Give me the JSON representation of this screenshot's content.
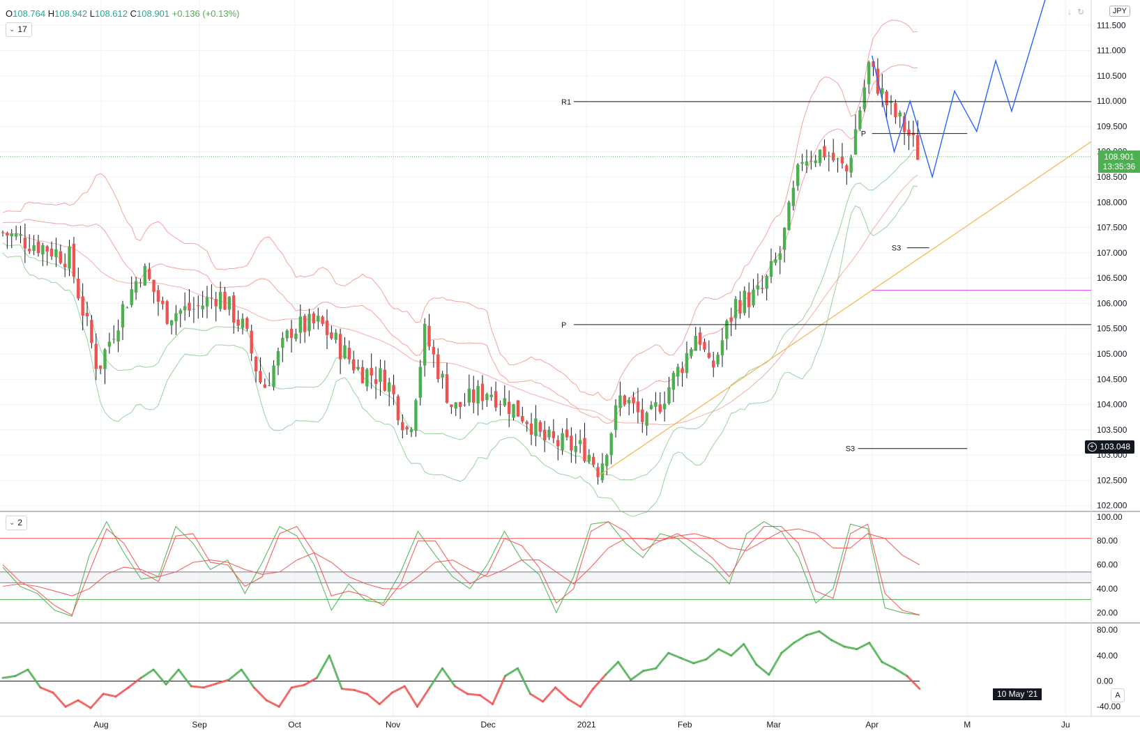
{
  "header": {
    "ohlc": {
      "o_label": "O",
      "o": "108.764",
      "h_label": "H",
      "h": "108.942",
      "l_label": "L",
      "l": "108.612",
      "c_label": "C",
      "c": "108.901",
      "change": "+0.136 (+0.13%)"
    },
    "main_pane_indicator_count": "17",
    "stoch_pane_indicator_count": "2",
    "currency": "JPY"
  },
  "last_price": {
    "value": "108.901",
    "countdown": "13:35:36"
  },
  "crosshair_price": "103.048",
  "crosshair_date": "10 May '21",
  "auto_label": "A",
  "colors": {
    "up": "#4caf50",
    "down": "#ef5350",
    "bb_red": "#f28b82",
    "bb_green": "#81c784",
    "trendline": "#f7b24e",
    "pattern": "#2962ff",
    "pivot": "#131722",
    "magenta": "#e040fb"
  },
  "chart_data": [
    {
      "type": "candlestick",
      "title": "",
      "ylim": [
        101.9,
        112.0
      ],
      "y_ticks": [
        "111.500",
        "111.000",
        "110.500",
        "110.000",
        "109.500",
        "109.000",
        "108.500",
        "108.000",
        "107.500",
        "107.000",
        "106.500",
        "106.000",
        "105.500",
        "105.000",
        "104.500",
        "104.000",
        "103.500",
        "103.000",
        "102.500",
        "102.000"
      ],
      "x_ticks": [
        "Aug",
        "Sep",
        "Oct",
        "Nov",
        "Dec",
        "2021",
        "Feb",
        "Mar",
        "Apr",
        "M",
        "Ju"
      ],
      "approx_close_path": [
        {
          "date": "Jul 1",
          "close": 107.4
        },
        {
          "date": "Jul 15",
          "close": 107.1
        },
        {
          "date": "Jul 22",
          "close": 106.9
        },
        {
          "date": "Jul 31",
          "close": 104.7
        },
        {
          "date": "Aug 7",
          "close": 105.8
        },
        {
          "date": "Aug 14",
          "close": 106.7
        },
        {
          "date": "Aug 21",
          "close": 105.8
        },
        {
          "date": "Aug 31",
          "close": 105.9
        },
        {
          "date": "Sep 7",
          "close": 106.2
        },
        {
          "date": "Sep 15",
          "close": 105.5
        },
        {
          "date": "Sep 21",
          "close": 104.3
        },
        {
          "date": "Sep 30",
          "close": 105.5
        },
        {
          "date": "Oct 9",
          "close": 105.6
        },
        {
          "date": "Oct 21",
          "close": 104.7
        },
        {
          "date": "Oct 30",
          "close": 104.5
        },
        {
          "date": "Nov 6",
          "close": 103.4
        },
        {
          "date": "Nov 11",
          "close": 105.4
        },
        {
          "date": "Nov 20",
          "close": 103.9
        },
        {
          "date": "Dec 1",
          "close": 104.3
        },
        {
          "date": "Dec 14",
          "close": 103.7
        },
        {
          "date": "Dec 18",
          "close": 103.3
        },
        {
          "date": "Jan 1",
          "close": 103.1
        },
        {
          "date": "Jan 5",
          "close": 102.7
        },
        {
          "date": "Jan 12",
          "close": 104.2
        },
        {
          "date": "Jan 20",
          "close": 103.6
        },
        {
          "date": "Feb 1",
          "close": 104.9
        },
        {
          "date": "Feb 5",
          "close": 105.5
        },
        {
          "date": "Feb 9",
          "close": 104.6
        },
        {
          "date": "Feb 17",
          "close": 106.0
        },
        {
          "date": "Feb 25",
          "close": 106.2
        },
        {
          "date": "Mar 3",
          "close": 107.0
        },
        {
          "date": "Mar 10",
          "close": 108.9
        },
        {
          "date": "Mar 17",
          "close": 109.0
        },
        {
          "date": "Mar 24",
          "close": 108.6
        },
        {
          "date": "Mar 31",
          "close": 110.7
        },
        {
          "date": "Apr 6",
          "close": 109.9
        },
        {
          "date": "Apr 12",
          "close": 109.4
        },
        {
          "date": "Apr 16",
          "close": 108.9
        }
      ],
      "levels": [
        {
          "label": "R1",
          "value": 109.99
        },
        {
          "label": "P",
          "value": 105.58
        },
        {
          "label": "P",
          "value": 109.36
        },
        {
          "label": "S3",
          "value": 107.1
        },
        {
          "label": "S3",
          "value": 103.13
        }
      ],
      "horizontal_line_magenta": 106.26
    },
    {
      "type": "line",
      "title": "",
      "ylim": [
        12,
        104
      ],
      "y_ticks": [
        "100.00",
        "80.00",
        "60.00",
        "40.00",
        "20.00"
      ],
      "hlines": [
        82,
        54,
        45,
        31
      ],
      "series": [
        {
          "values": [
            58,
            42,
            36,
            22,
            17,
            68,
            96,
            70,
            48,
            50,
            92,
            78,
            56,
            64,
            36,
            62,
            92,
            84,
            60,
            22,
            44,
            30,
            28,
            54,
            88,
            68,
            50,
            40,
            60,
            88,
            64,
            52,
            20,
            50,
            94,
            96,
            78,
            66,
            86,
            82,
            70,
            60,
            44,
            86,
            96,
            88,
            66,
            28,
            40,
            94,
            90,
            24,
            20,
            18
          ]
        },
        {
          "values": [
            60,
            46,
            38,
            26,
            18,
            54,
            90,
            78,
            54,
            46,
            84,
            86,
            62,
            60,
            42,
            50,
            86,
            92,
            70,
            34,
            38,
            34,
            26,
            44,
            80,
            80,
            58,
            44,
            52,
            82,
            76,
            58,
            28,
            40,
            88,
            96,
            88,
            72,
            80,
            86,
            78,
            66,
            50,
            74,
            92,
            92,
            78,
            38,
            32,
            86,
            94,
            36,
            22,
            18
          ]
        },
        {
          "values": [
            42,
            44,
            42,
            38,
            34,
            40,
            52,
            58,
            56,
            50,
            54,
            62,
            64,
            62,
            56,
            52,
            54,
            64,
            70,
            62,
            50,
            44,
            40,
            40,
            50,
            62,
            64,
            56,
            50,
            56,
            64,
            64,
            54,
            44,
            58,
            74,
            82,
            82,
            80,
            84,
            86,
            82,
            74,
            72,
            80,
            88,
            90,
            86,
            74,
            74,
            86,
            82,
            68,
            60
          ]
        }
      ]
    },
    {
      "type": "line",
      "title": "",
      "ylim": [
        -55,
        90
      ],
      "y_ticks": [
        "80.00",
        "40.00",
        "0.00",
        "-40.00"
      ],
      "values": [
        5,
        8,
        18,
        -10,
        -18,
        -40,
        -30,
        -42,
        -20,
        -24,
        -10,
        5,
        18,
        -5,
        18,
        -8,
        -10,
        -4,
        2,
        18,
        -10,
        -30,
        -40,
        -10,
        -6,
        5,
        40,
        -12,
        -14,
        -20,
        -36,
        -18,
        -8,
        -40,
        -10,
        20,
        -8,
        -20,
        -22,
        -36,
        8,
        20,
        -20,
        -32,
        -10,
        -28,
        -40,
        -12,
        10,
        30,
        2,
        16,
        20,
        44,
        36,
        28,
        34,
        50,
        40,
        58,
        26,
        10,
        44,
        60,
        72,
        78,
        64,
        54,
        50,
        60,
        30,
        20,
        8,
        -12
      ]
    }
  ]
}
